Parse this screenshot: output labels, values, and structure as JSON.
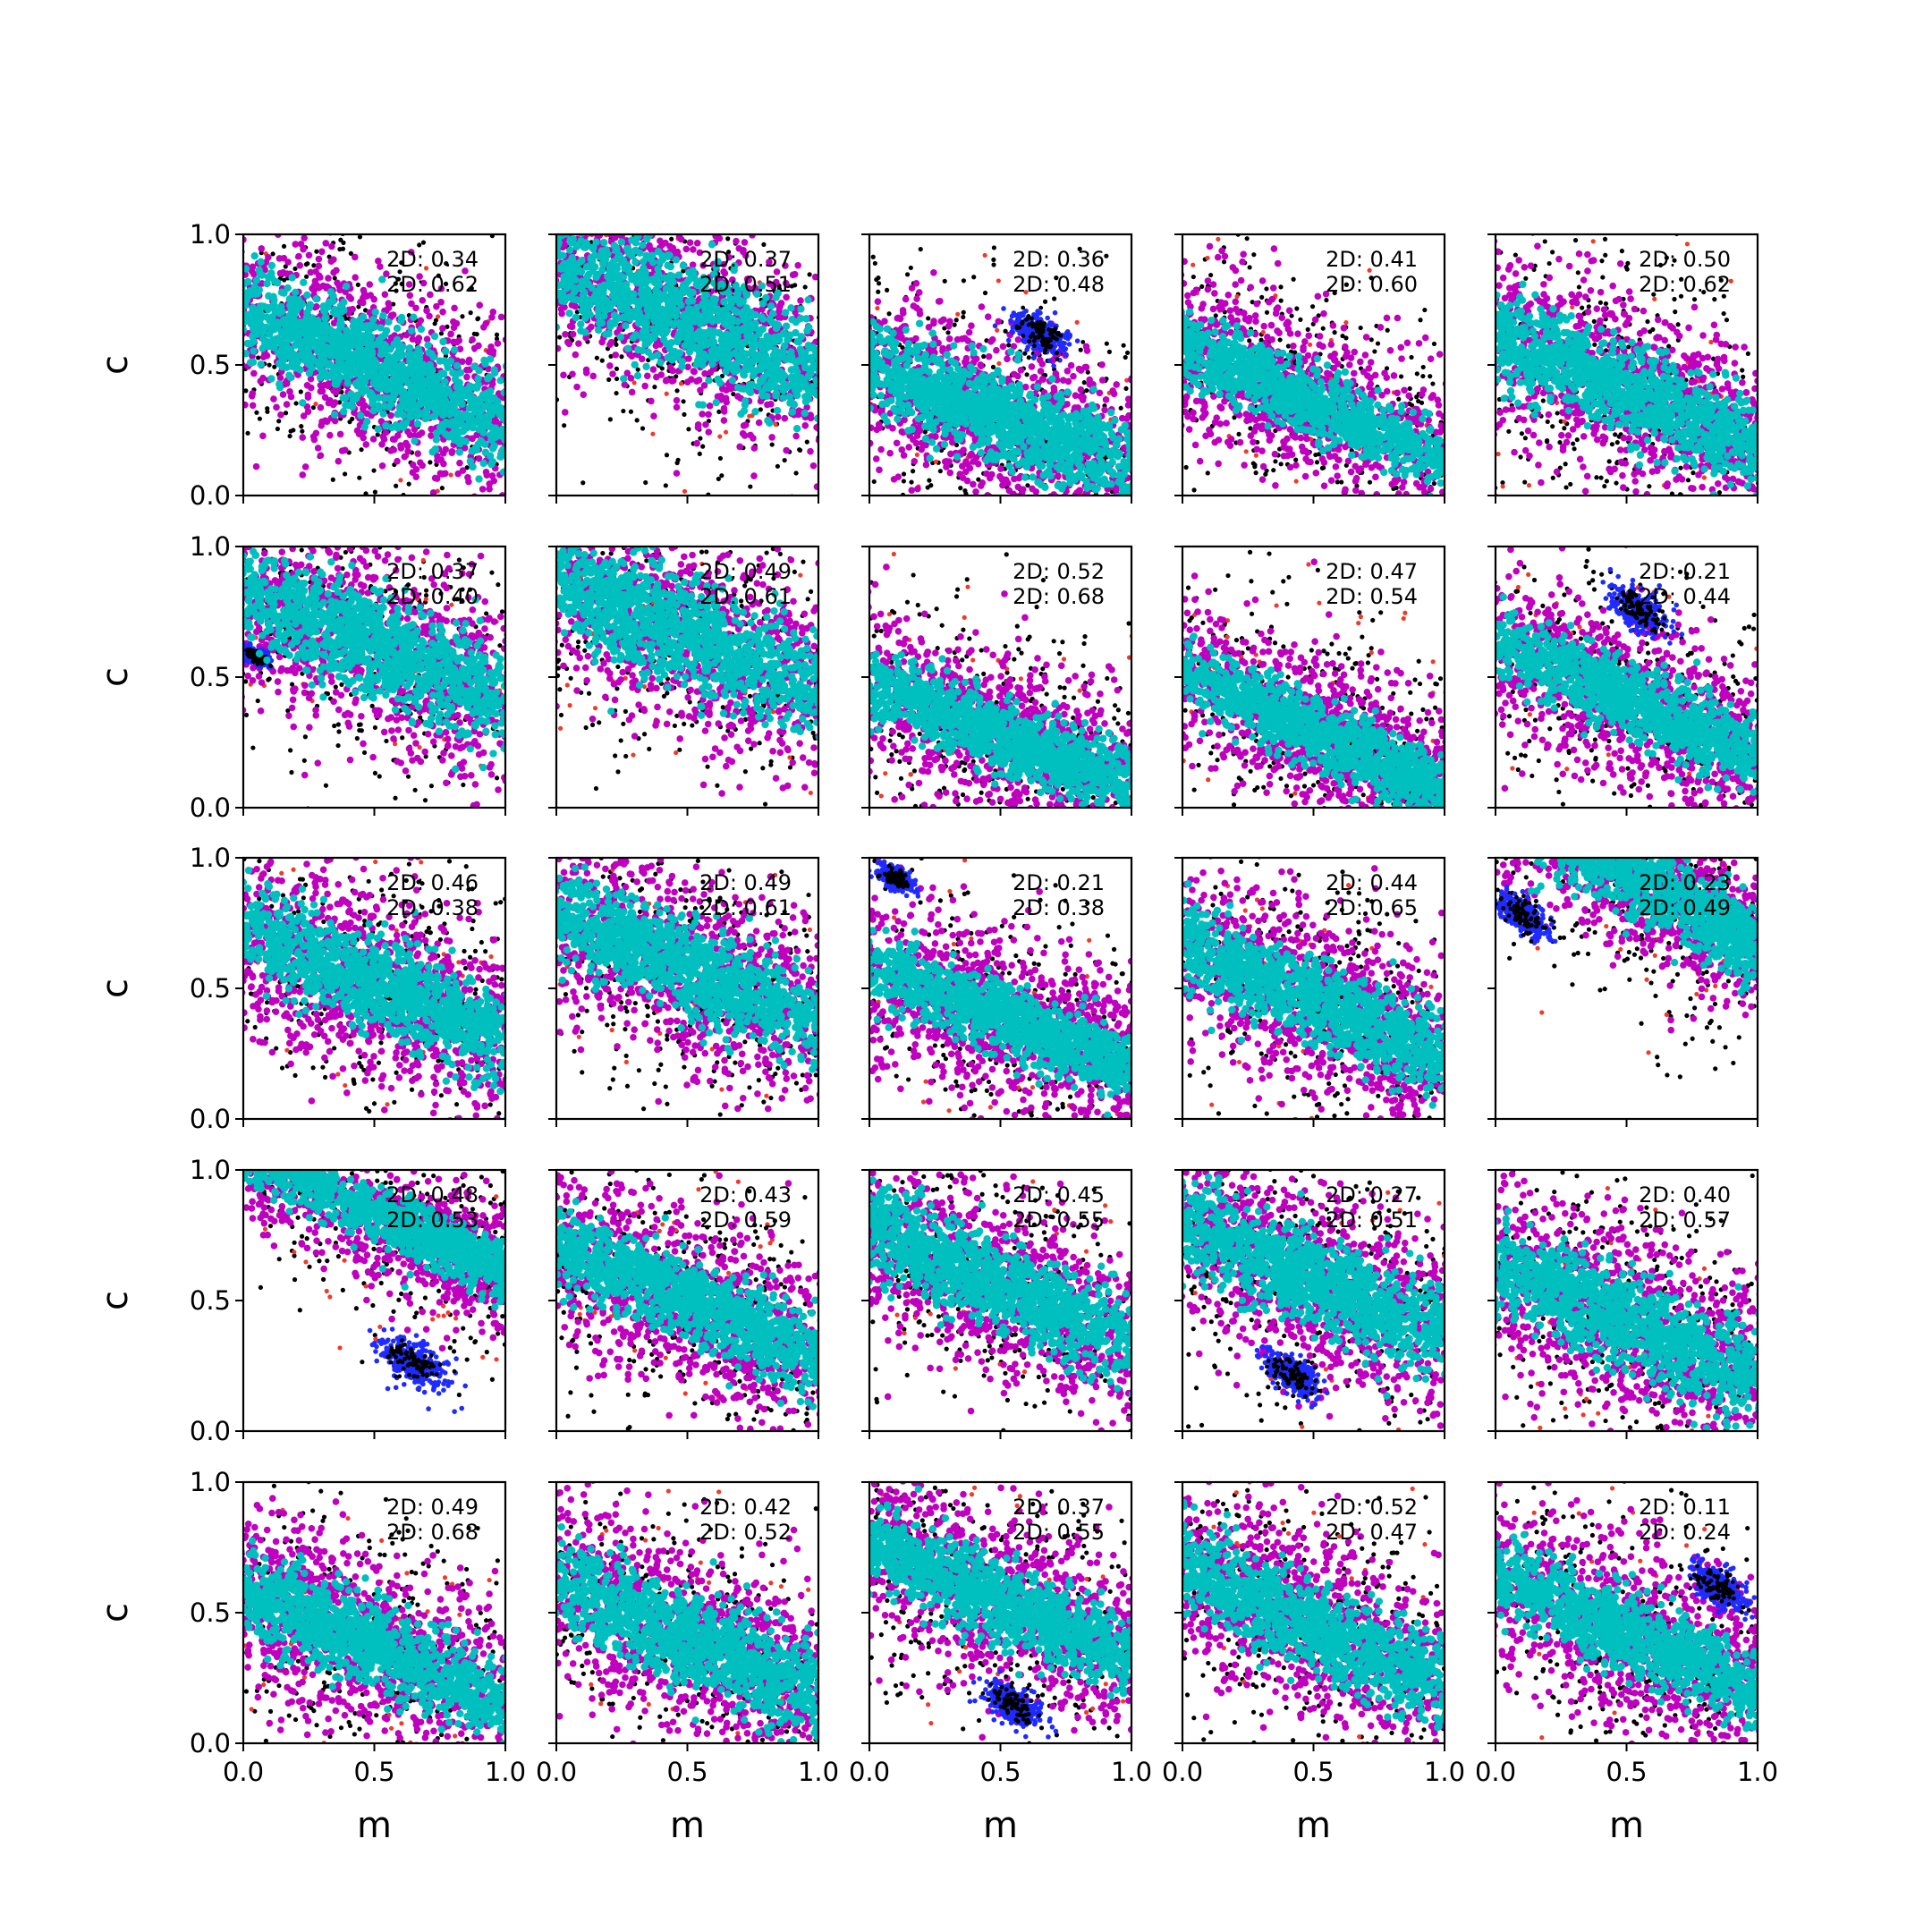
{
  "chart_data": {
    "type": "scatter",
    "layout": "5x5 grid of scatter subplots",
    "xlabel": "m",
    "ylabel": "c",
    "xlim": [
      0.0,
      1.0
    ],
    "ylim": [
      0.0,
      1.0
    ],
    "xticks": [
      "0.0",
      "0.5",
      "1.0"
    ],
    "yticks": [
      "0.0",
      "0.5",
      "1.0"
    ],
    "grid": false,
    "series_colors": {
      "black_points": "#000000",
      "red_points": "#f03a2a",
      "blue_points": "#1f2bff",
      "magenta_band": "#bf00bf",
      "cyan_core": "#00bfbf"
    },
    "panels": [
      {
        "row": 0,
        "col": 0,
        "anno1": "2D: 0.34",
        "anno2": "2D: 0.62",
        "cx": 0.5,
        "cy": 0.5,
        "slope": -0.45,
        "w1": 0.17,
        "w2": 0.31,
        "blue": null
      },
      {
        "row": 0,
        "col": 1,
        "anno1": "2D: 0.37",
        "anno2": "2D: 0.51",
        "cx": 0.45,
        "cy": 0.7,
        "slope": -0.45,
        "w1": 0.19,
        "w2": 0.31,
        "blue": null
      },
      {
        "row": 0,
        "col": 2,
        "anno1": "2D: 0.36",
        "anno2": "2D: 0.48",
        "cx": 0.5,
        "cy": 0.3,
        "slope": -0.4,
        "w1": 0.16,
        "w2": 0.3,
        "blue": {
          "x": 0.65,
          "y": 0.62,
          "r": 0.1
        }
      },
      {
        "row": 0,
        "col": 3,
        "anno1": "2D: 0.41",
        "anno2": "2D: 0.60",
        "cx": 0.35,
        "cy": 0.42,
        "slope": -0.45,
        "w1": 0.12,
        "w2": 0.28,
        "blue": null
      },
      {
        "row": 0,
        "col": 4,
        "anno1": "2D: 0.50",
        "anno2": "2D: 0.62",
        "cx": 0.5,
        "cy": 0.4,
        "slope": -0.45,
        "w1": 0.16,
        "w2": 0.3,
        "blue": null
      },
      {
        "row": 1,
        "col": 0,
        "anno1": "2D: 0.37",
        "anno2": "2D: 0.40",
        "cx": 0.5,
        "cy": 0.62,
        "slope": -0.45,
        "w1": 0.18,
        "w2": 0.31,
        "blue": {
          "x": 0.05,
          "y": 0.58,
          "r": 0.04
        }
      },
      {
        "row": 1,
        "col": 1,
        "anno1": "2D: 0.49",
        "anno2": "2D: 0.61",
        "cx": 0.45,
        "cy": 0.68,
        "slope": -0.45,
        "w1": 0.18,
        "w2": 0.31,
        "blue": null
      },
      {
        "row": 1,
        "col": 2,
        "anno1": "2D: 0.52",
        "anno2": "2D: 0.68",
        "cx": 0.5,
        "cy": 0.28,
        "slope": -0.4,
        "w1": 0.13,
        "w2": 0.27,
        "blue": null
      },
      {
        "row": 1,
        "col": 3,
        "anno1": "2D: 0.47",
        "anno2": "2D: 0.54",
        "cx": 0.6,
        "cy": 0.25,
        "slope": -0.45,
        "w1": 0.12,
        "w2": 0.27,
        "blue": null
      },
      {
        "row": 1,
        "col": 4,
        "anno1": "2D: 0.21",
        "anno2": "2D: 0.44",
        "cx": 0.6,
        "cy": 0.38,
        "slope": -0.45,
        "w1": 0.13,
        "w2": 0.27,
        "blue": {
          "x": 0.55,
          "y": 0.76,
          "r": 0.1
        }
      },
      {
        "row": 2,
        "col": 0,
        "anno1": "2D: 0.46",
        "anno2": "2D: 0.38",
        "cx": 0.5,
        "cy": 0.52,
        "slope": -0.45,
        "w1": 0.16,
        "w2": 0.32,
        "blue": null
      },
      {
        "row": 2,
        "col": 1,
        "anno1": "2D: 0.49",
        "anno2": "2D: 0.61",
        "cx": 0.45,
        "cy": 0.6,
        "slope": -0.45,
        "w1": 0.16,
        "w2": 0.3,
        "blue": null
      },
      {
        "row": 2,
        "col": 2,
        "anno1": "2D: 0.21",
        "anno2": "2D: 0.38",
        "cx": 0.6,
        "cy": 0.35,
        "slope": -0.4,
        "w1": 0.12,
        "w2": 0.3,
        "blue": {
          "x": 0.1,
          "y": 0.92,
          "r": 0.06
        }
      },
      {
        "row": 2,
        "col": 3,
        "anno1": "2D: 0.44",
        "anno2": "2D: 0.65",
        "cx": 0.5,
        "cy": 0.45,
        "slope": -0.45,
        "w1": 0.15,
        "w2": 0.3,
        "blue": null
      },
      {
        "row": 2,
        "col": 4,
        "anno1": "2D: 0.23",
        "anno2": "2D: 0.49",
        "cx": 0.75,
        "cy": 0.8,
        "slope": -0.55,
        "w1": 0.14,
        "w2": 0.25,
        "blue": {
          "x": 0.1,
          "y": 0.78,
          "r": 0.09
        }
      },
      {
        "row": 3,
        "col": 0,
        "anno1": "2D: 0.48",
        "anno2": "2D: 0.53",
        "cx": 0.8,
        "cy": 0.7,
        "slope": -0.45,
        "w1": 0.1,
        "w2": 0.22,
        "blue": {
          "x": 0.65,
          "y": 0.26,
          "r": 0.12
        }
      },
      {
        "row": 3,
        "col": 1,
        "anno1": "2D: 0.43",
        "anno2": "2D: 0.59",
        "cx": 0.5,
        "cy": 0.5,
        "slope": -0.45,
        "w1": 0.14,
        "w2": 0.28,
        "blue": null
      },
      {
        "row": 3,
        "col": 2,
        "anno1": "2D: 0.45",
        "anno2": "2D: 0.55",
        "cx": 0.45,
        "cy": 0.58,
        "slope": -0.45,
        "w1": 0.16,
        "w2": 0.3,
        "blue": null
      },
      {
        "row": 3,
        "col": 3,
        "anno1": "2D: 0.27",
        "anno2": "2D: 0.51",
        "cx": 0.5,
        "cy": 0.58,
        "slope": -0.45,
        "w1": 0.16,
        "w2": 0.3,
        "blue": {
          "x": 0.42,
          "y": 0.22,
          "r": 0.1
        }
      },
      {
        "row": 3,
        "col": 4,
        "anno1": "2D: 0.40",
        "anno2": "2D: 0.57",
        "cx": 0.5,
        "cy": 0.42,
        "slope": -0.45,
        "w1": 0.16,
        "w2": 0.31,
        "blue": null
      },
      {
        "row": 4,
        "col": 0,
        "anno1": "2D: 0.49",
        "anno2": "2D: 0.68",
        "cx": 0.4,
        "cy": 0.42,
        "slope": -0.45,
        "w1": 0.15,
        "w2": 0.3,
        "blue": null
      },
      {
        "row": 4,
        "col": 1,
        "anno1": "2D: 0.42",
        "anno2": "2D: 0.52",
        "cx": 0.5,
        "cy": 0.4,
        "slope": -0.45,
        "w1": 0.17,
        "w2": 0.31,
        "blue": null
      },
      {
        "row": 4,
        "col": 2,
        "anno1": "2D: 0.37",
        "anno2": "2D: 0.55",
        "cx": 0.5,
        "cy": 0.55,
        "slope": -0.45,
        "w1": 0.14,
        "w2": 0.3,
        "blue": {
          "x": 0.55,
          "y": 0.15,
          "r": 0.1
        }
      },
      {
        "row": 4,
        "col": 3,
        "anno1": "2D: 0.52",
        "anno2": "2D: 0.47",
        "cx": 0.5,
        "cy": 0.45,
        "slope": -0.45,
        "w1": 0.16,
        "w2": 0.29,
        "blue": null
      },
      {
        "row": 4,
        "col": 4,
        "anno1": "2D: 0.11",
        "anno2": "2D: 0.24",
        "cx": 0.55,
        "cy": 0.4,
        "slope": -0.45,
        "w1": 0.14,
        "w2": 0.3,
        "blue": {
          "x": 0.85,
          "y": 0.6,
          "r": 0.1
        }
      }
    ]
  }
}
